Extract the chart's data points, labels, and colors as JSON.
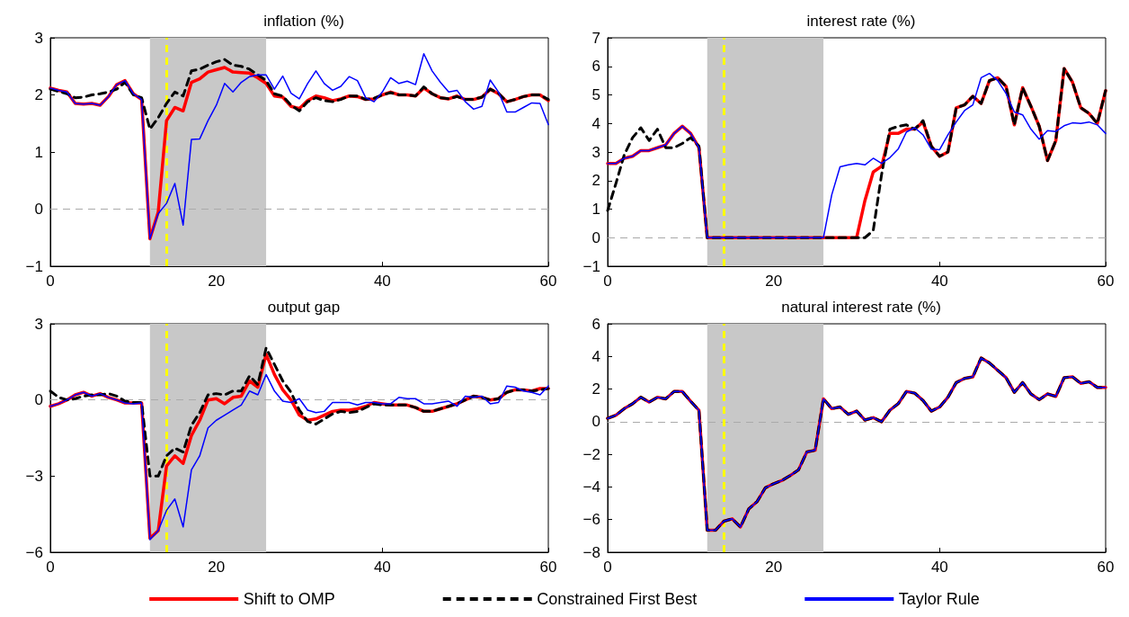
{
  "chart_data": [
    {
      "type": "line",
      "title": "inflation (%)",
      "x": [
        0,
        1,
        2,
        3,
        4,
        5,
        6,
        7,
        8,
        9,
        10,
        11,
        12,
        13,
        14,
        15,
        16,
        17,
        18,
        19,
        20,
        21,
        22,
        23,
        24,
        25,
        26,
        27,
        28,
        29,
        30,
        31,
        32,
        33,
        34,
        35,
        36,
        37,
        38,
        39,
        40,
        41,
        42,
        43,
        44,
        45,
        46,
        47,
        48,
        49,
        50,
        51,
        52,
        53,
        54,
        55,
        56,
        57,
        58,
        59,
        60
      ],
      "xlim": [
        0,
        60
      ],
      "xticks": [
        0,
        20,
        40,
        60
      ],
      "ylim": [
        -1,
        3
      ],
      "yticks": [
        -1,
        0,
        1,
        2,
        3
      ],
      "grid": false,
      "marker": "none",
      "bands": [
        {
          "axis": "x",
          "from": 12,
          "to": 26,
          "color": "#c8c8c8"
        }
      ],
      "ref_lines": [
        {
          "axis": "x",
          "value": 14,
          "color": "#ffff00",
          "line_style": "dashed"
        },
        {
          "axis": "y",
          "value": 0,
          "color": "#aaaaaa",
          "line_style": "dashed"
        }
      ],
      "series": [
        {
          "color": "#ff0000",
          "line_style": "solid",
          "values": [
            2.12,
            2.08,
            2.05,
            1.85,
            1.84,
            1.85,
            1.82,
            1.97,
            2.18,
            2.25,
            2.02,
            1.92,
            -0.52,
            -0.05,
            1.55,
            1.78,
            1.72,
            2.22,
            2.28,
            2.4,
            2.44,
            2.48,
            2.4,
            2.39,
            2.38,
            2.3,
            2.2,
            1.98,
            1.96,
            1.8,
            1.76,
            1.9,
            1.98,
            1.95,
            1.9,
            1.93,
            1.98,
            1.97,
            1.92,
            1.93,
            2.0,
            2.05,
            2.0,
            2.0,
            1.98,
            2.12,
            2.02,
            1.95,
            1.93,
            1.98,
            1.92,
            1.92,
            1.96,
            2.1,
            2.02,
            1.88,
            1.92,
            1.97,
            2.0,
            2.0,
            1.9
          ]
        },
        {
          "color": "#000000",
          "line_style": "dashed",
          "values": [
            2.1,
            2.06,
            2.02,
            1.95,
            1.96,
            2.0,
            2.02,
            2.05,
            2.1,
            2.22,
            2.0,
            1.95,
            1.4,
            1.6,
            1.85,
            2.05,
            1.98,
            2.42,
            2.45,
            2.52,
            2.58,
            2.62,
            2.52,
            2.5,
            2.45,
            2.35,
            2.25,
            2.02,
            1.98,
            1.82,
            1.72,
            1.88,
            1.95,
            1.9,
            1.88,
            1.92,
            1.98,
            1.98,
            1.92,
            1.94,
            2.0,
            2.04,
            2.0,
            2.0,
            1.98,
            2.14,
            2.02,
            1.95,
            1.93,
            1.97,
            1.92,
            1.92,
            1.96,
            2.1,
            2.03,
            1.88,
            1.92,
            1.97,
            2.0,
            2.0,
            1.92
          ]
        },
        {
          "color": "#0000ff",
          "line_style": "solid",
          "values": [
            2.12,
            2.08,
            2.05,
            1.85,
            1.84,
            1.85,
            1.82,
            1.97,
            2.18,
            2.25,
            2.02,
            1.92,
            -0.52,
            -0.08,
            0.1,
            0.45,
            -0.28,
            1.22,
            1.23,
            1.55,
            1.82,
            2.2,
            2.05,
            2.22,
            2.32,
            2.35,
            2.35,
            2.1,
            2.33,
            2.03,
            1.93,
            2.2,
            2.42,
            2.2,
            2.08,
            2.15,
            2.32,
            2.25,
            1.95,
            1.88,
            2.05,
            2.3,
            2.2,
            2.24,
            2.18,
            2.72,
            2.42,
            2.22,
            2.05,
            2.08,
            1.88,
            1.75,
            1.8,
            2.26,
            2.05,
            1.7,
            1.7,
            1.78,
            1.86,
            1.85,
            1.48
          ]
        }
      ]
    },
    {
      "type": "line",
      "title": "interest rate (%)",
      "x": [
        0,
        1,
        2,
        3,
        4,
        5,
        6,
        7,
        8,
        9,
        10,
        11,
        12,
        13,
        14,
        15,
        16,
        17,
        18,
        19,
        20,
        21,
        22,
        23,
        24,
        25,
        26,
        27,
        28,
        29,
        30,
        31,
        32,
        33,
        34,
        35,
        36,
        37,
        38,
        39,
        40,
        41,
        42,
        43,
        44,
        45,
        46,
        47,
        48,
        49,
        50,
        51,
        52,
        53,
        54,
        55,
        56,
        57,
        58,
        59,
        60
      ],
      "xlim": [
        0,
        60
      ],
      "xticks": [
        0,
        20,
        40,
        60
      ],
      "ylim": [
        -1,
        7
      ],
      "yticks": [
        -1,
        0,
        1,
        2,
        3,
        4,
        5,
        6,
        7
      ],
      "grid": false,
      "marker": "none",
      "bands": [
        {
          "axis": "x",
          "from": 12,
          "to": 26,
          "color": "#c8c8c8"
        }
      ],
      "ref_lines": [
        {
          "axis": "x",
          "value": 14,
          "color": "#ffff00",
          "line_style": "dashed"
        },
        {
          "axis": "y",
          "value": 0,
          "color": "#aaaaaa",
          "line_style": "dashed"
        }
      ],
      "series": [
        {
          "color": "#ff0000",
          "line_style": "solid",
          "values": [
            2.6,
            2.6,
            2.78,
            2.85,
            3.05,
            3.05,
            3.15,
            3.25,
            3.65,
            3.9,
            3.65,
            3.15,
            0,
            0,
            0,
            0,
            0,
            0,
            0,
            0,
            0,
            0,
            0,
            0,
            0,
            0,
            0,
            0,
            0,
            0,
            0,
            1.3,
            2.3,
            2.5,
            3.65,
            3.65,
            3.8,
            3.8,
            4.05,
            3.2,
            2.85,
            3.0,
            4.55,
            4.65,
            4.95,
            4.7,
            5.5,
            5.6,
            5.3,
            3.95,
            5.25,
            4.6,
            3.9,
            2.7,
            3.4,
            5.92,
            5.45,
            4.55,
            4.35,
            4.0,
            5.15
          ]
        },
        {
          "color": "#000000",
          "line_style": "dashed",
          "values": [
            0.95,
            1.9,
            2.9,
            3.5,
            3.85,
            3.4,
            3.8,
            3.15,
            3.15,
            3.3,
            3.5,
            3.2,
            0,
            0,
            0,
            0,
            0,
            0,
            0,
            0,
            0,
            0,
            0,
            0,
            0,
            0,
            0,
            0,
            0,
            0,
            0,
            0,
            0.25,
            2.2,
            3.8,
            3.9,
            3.95,
            3.8,
            4.1,
            3.2,
            2.85,
            3.0,
            4.55,
            4.65,
            4.95,
            4.7,
            5.5,
            5.6,
            5.3,
            3.95,
            5.25,
            4.6,
            3.9,
            2.7,
            3.4,
            5.92,
            5.45,
            4.55,
            4.35,
            4.0,
            5.15
          ]
        },
        {
          "color": "#0000ff",
          "line_style": "solid",
          "values": [
            2.6,
            2.6,
            2.78,
            2.85,
            3.05,
            3.05,
            3.15,
            3.25,
            3.65,
            3.9,
            3.65,
            3.15,
            0,
            0,
            0,
            0,
            0,
            0,
            0,
            0,
            0,
            0,
            0,
            0,
            0,
            0,
            0,
            1.5,
            2.48,
            2.55,
            2.6,
            2.55,
            2.78,
            2.6,
            2.8,
            3.1,
            3.7,
            3.85,
            3.6,
            3.1,
            3.08,
            3.6,
            4.05,
            4.45,
            4.65,
            5.6,
            5.75,
            5.5,
            5.05,
            4.4,
            4.3,
            3.8,
            3.45,
            3.75,
            3.72,
            3.92,
            4.02,
            4.0,
            4.05,
            3.95,
            3.65
          ]
        }
      ]
    },
    {
      "type": "line",
      "title": "output gap",
      "x": [
        0,
        1,
        2,
        3,
        4,
        5,
        6,
        7,
        8,
        9,
        10,
        11,
        12,
        13,
        14,
        15,
        16,
        17,
        18,
        19,
        20,
        21,
        22,
        23,
        24,
        25,
        26,
        27,
        28,
        29,
        30,
        31,
        32,
        33,
        34,
        35,
        36,
        37,
        38,
        39,
        40,
        41,
        42,
        43,
        44,
        45,
        46,
        47,
        48,
        49,
        50,
        51,
        52,
        53,
        54,
        55,
        56,
        57,
        58,
        59,
        60
      ],
      "xlim": [
        0,
        60
      ],
      "xticks": [
        0,
        20,
        40,
        60
      ],
      "ylim": [
        -6,
        3
      ],
      "yticks": [
        -6,
        -3,
        0,
        3
      ],
      "grid": false,
      "marker": "none",
      "bands": [
        {
          "axis": "x",
          "from": 12,
          "to": 26,
          "color": "#c8c8c8"
        }
      ],
      "ref_lines": [
        {
          "axis": "x",
          "value": 14,
          "color": "#ffff00",
          "line_style": "dashed"
        },
        {
          "axis": "y",
          "value": 0,
          "color": "#aaaaaa",
          "line_style": "dashed"
        }
      ],
      "series": [
        {
          "color": "#ff0000",
          "line_style": "solid",
          "values": [
            -0.25,
            -0.15,
            0.0,
            0.2,
            0.3,
            0.15,
            0.25,
            0.1,
            0.0,
            -0.12,
            -0.12,
            -0.12,
            -5.45,
            -5.15,
            -2.6,
            -2.2,
            -2.5,
            -1.4,
            -0.8,
            0.0,
            0.05,
            -0.15,
            0.1,
            0.15,
            0.75,
            0.5,
            1.8,
            1.0,
            0.4,
            0.0,
            -0.6,
            -0.8,
            -0.75,
            -0.6,
            -0.45,
            -0.4,
            -0.4,
            -0.35,
            -0.25,
            -0.1,
            -0.15,
            -0.2,
            -0.2,
            -0.2,
            -0.3,
            -0.45,
            -0.45,
            -0.35,
            -0.25,
            -0.15,
            0.0,
            0.15,
            0.1,
            0.0,
            0.05,
            0.3,
            0.4,
            0.4,
            0.35,
            0.45,
            0.45
          ]
        },
        {
          "color": "#000000",
          "line_style": "dashed",
          "values": [
            0.35,
            0.1,
            0.0,
            0.05,
            0.15,
            0.2,
            0.2,
            0.25,
            0.15,
            -0.05,
            -0.1,
            -0.1,
            -3.0,
            -3.0,
            -2.2,
            -1.9,
            -2.05,
            -1.0,
            -0.5,
            0.2,
            0.25,
            0.2,
            0.35,
            0.35,
            0.95,
            0.6,
            2.05,
            1.4,
            0.75,
            0.3,
            -0.4,
            -0.85,
            -0.95,
            -0.75,
            -0.55,
            -0.45,
            -0.5,
            -0.45,
            -0.3,
            -0.15,
            -0.2,
            -0.2,
            -0.2,
            -0.2,
            -0.3,
            -0.45,
            -0.45,
            -0.35,
            -0.25,
            -0.15,
            0.0,
            0.15,
            0.1,
            0.0,
            0.05,
            0.3,
            0.4,
            0.4,
            0.35,
            0.4,
            0.45
          ]
        },
        {
          "color": "#0000ff",
          "line_style": "solid",
          "values": [
            -0.25,
            -0.15,
            0.0,
            0.2,
            0.3,
            0.15,
            0.25,
            0.1,
            0.0,
            -0.12,
            -0.15,
            -0.12,
            -5.5,
            -5.15,
            -4.35,
            -3.9,
            -5.0,
            -2.75,
            -2.2,
            -1.1,
            -0.8,
            -0.6,
            -0.4,
            -0.2,
            0.35,
            0.2,
            1.0,
            0.35,
            -0.05,
            -0.1,
            0.05,
            -0.4,
            -0.5,
            -0.45,
            -0.1,
            -0.1,
            -0.1,
            -0.2,
            -0.1,
            -0.1,
            -0.15,
            -0.15,
            0.1,
            0.05,
            0.05,
            -0.15,
            -0.15,
            -0.1,
            -0.05,
            -0.25,
            0.15,
            0.1,
            0.15,
            -0.15,
            -0.1,
            0.55,
            0.5,
            0.35,
            0.3,
            0.2,
            0.55
          ]
        }
      ]
    },
    {
      "type": "line",
      "title": "natural interest rate (%)",
      "x": [
        0,
        1,
        2,
        3,
        4,
        5,
        6,
        7,
        8,
        9,
        10,
        11,
        12,
        13,
        14,
        15,
        16,
        17,
        18,
        19,
        20,
        21,
        22,
        23,
        24,
        25,
        26,
        27,
        28,
        29,
        30,
        31,
        32,
        33,
        34,
        35,
        36,
        37,
        38,
        39,
        40,
        41,
        42,
        43,
        44,
        45,
        46,
        47,
        48,
        49,
        50,
        51,
        52,
        53,
        54,
        55,
        56,
        57,
        58,
        59,
        60
      ],
      "xlim": [
        0,
        60
      ],
      "xticks": [
        0,
        20,
        40,
        60
      ],
      "ylim": [
        -8,
        6
      ],
      "yticks": [
        -8,
        -6,
        -4,
        -2,
        0,
        2,
        4,
        6
      ],
      "grid": false,
      "marker": "none",
      "legend": "bottom",
      "bands": [
        {
          "axis": "x",
          "from": 12,
          "to": 26,
          "color": "#c8c8c8"
        }
      ],
      "ref_lines": [
        {
          "axis": "x",
          "value": 14,
          "color": "#ffff00",
          "line_style": "dashed"
        },
        {
          "axis": "y",
          "value": 0,
          "color": "#aaaaaa",
          "line_style": "dashed"
        }
      ],
      "series": [
        {
          "name": "Shift to OMP",
          "color": "#ff0000",
          "line_style": "solid",
          "values": [
            0.2,
            0.4,
            0.8,
            1.1,
            1.5,
            1.2,
            1.5,
            1.4,
            1.85,
            1.85,
            1.25,
            0.7,
            -6.65,
            -6.65,
            -6.1,
            -5.95,
            -6.45,
            -5.35,
            -4.9,
            -4.05,
            -3.8,
            -3.6,
            -3.3,
            -2.95,
            -1.85,
            -1.75,
            1.4,
            0.8,
            0.9,
            0.45,
            0.65,
            0.1,
            0.25,
            0.0,
            0.7,
            1.1,
            1.85,
            1.75,
            1.3,
            0.65,
            0.9,
            1.5,
            2.4,
            2.65,
            2.75,
            3.9,
            3.6,
            3.15,
            2.7,
            1.8,
            2.4,
            1.7,
            1.35,
            1.7,
            1.55,
            2.7,
            2.75,
            2.35,
            2.45,
            2.1,
            2.1
          ]
        },
        {
          "name": "Constrained First Best",
          "color": "#000000",
          "line_style": "dashed",
          "values": [
            0.2,
            0.4,
            0.8,
            1.1,
            1.5,
            1.2,
            1.5,
            1.4,
            1.85,
            1.85,
            1.25,
            0.7,
            -6.65,
            -6.65,
            -6.1,
            -5.95,
            -6.45,
            -5.35,
            -4.9,
            -4.05,
            -3.8,
            -3.6,
            -3.3,
            -2.95,
            -1.85,
            -1.75,
            1.4,
            0.8,
            0.9,
            0.45,
            0.65,
            0.1,
            0.25,
            0.0,
            0.7,
            1.1,
            1.85,
            1.75,
            1.3,
            0.65,
            0.9,
            1.5,
            2.4,
            2.65,
            2.75,
            3.9,
            3.6,
            3.15,
            2.7,
            1.8,
            2.4,
            1.7,
            1.35,
            1.7,
            1.55,
            2.7,
            2.75,
            2.35,
            2.45,
            2.1,
            2.1
          ]
        },
        {
          "name": "Taylor Rule",
          "color": "#0000ff",
          "line_style": "solid",
          "values": [
            0.2,
            0.4,
            0.8,
            1.1,
            1.5,
            1.2,
            1.5,
            1.4,
            1.85,
            1.85,
            1.25,
            0.7,
            -6.65,
            -6.65,
            -6.1,
            -5.95,
            -6.45,
            -5.35,
            -4.9,
            -4.05,
            -3.8,
            -3.6,
            -3.3,
            -2.95,
            -1.85,
            -1.75,
            1.4,
            0.8,
            0.9,
            0.45,
            0.65,
            0.1,
            0.25,
            0.0,
            0.7,
            1.1,
            1.85,
            1.75,
            1.3,
            0.65,
            0.9,
            1.5,
            2.4,
            2.65,
            2.75,
            3.9,
            3.6,
            3.15,
            2.7,
            1.8,
            2.4,
            1.7,
            1.35,
            1.7,
            1.55,
            2.7,
            2.75,
            2.35,
            2.45,
            2.1,
            2.1
          ]
        }
      ]
    }
  ]
}
